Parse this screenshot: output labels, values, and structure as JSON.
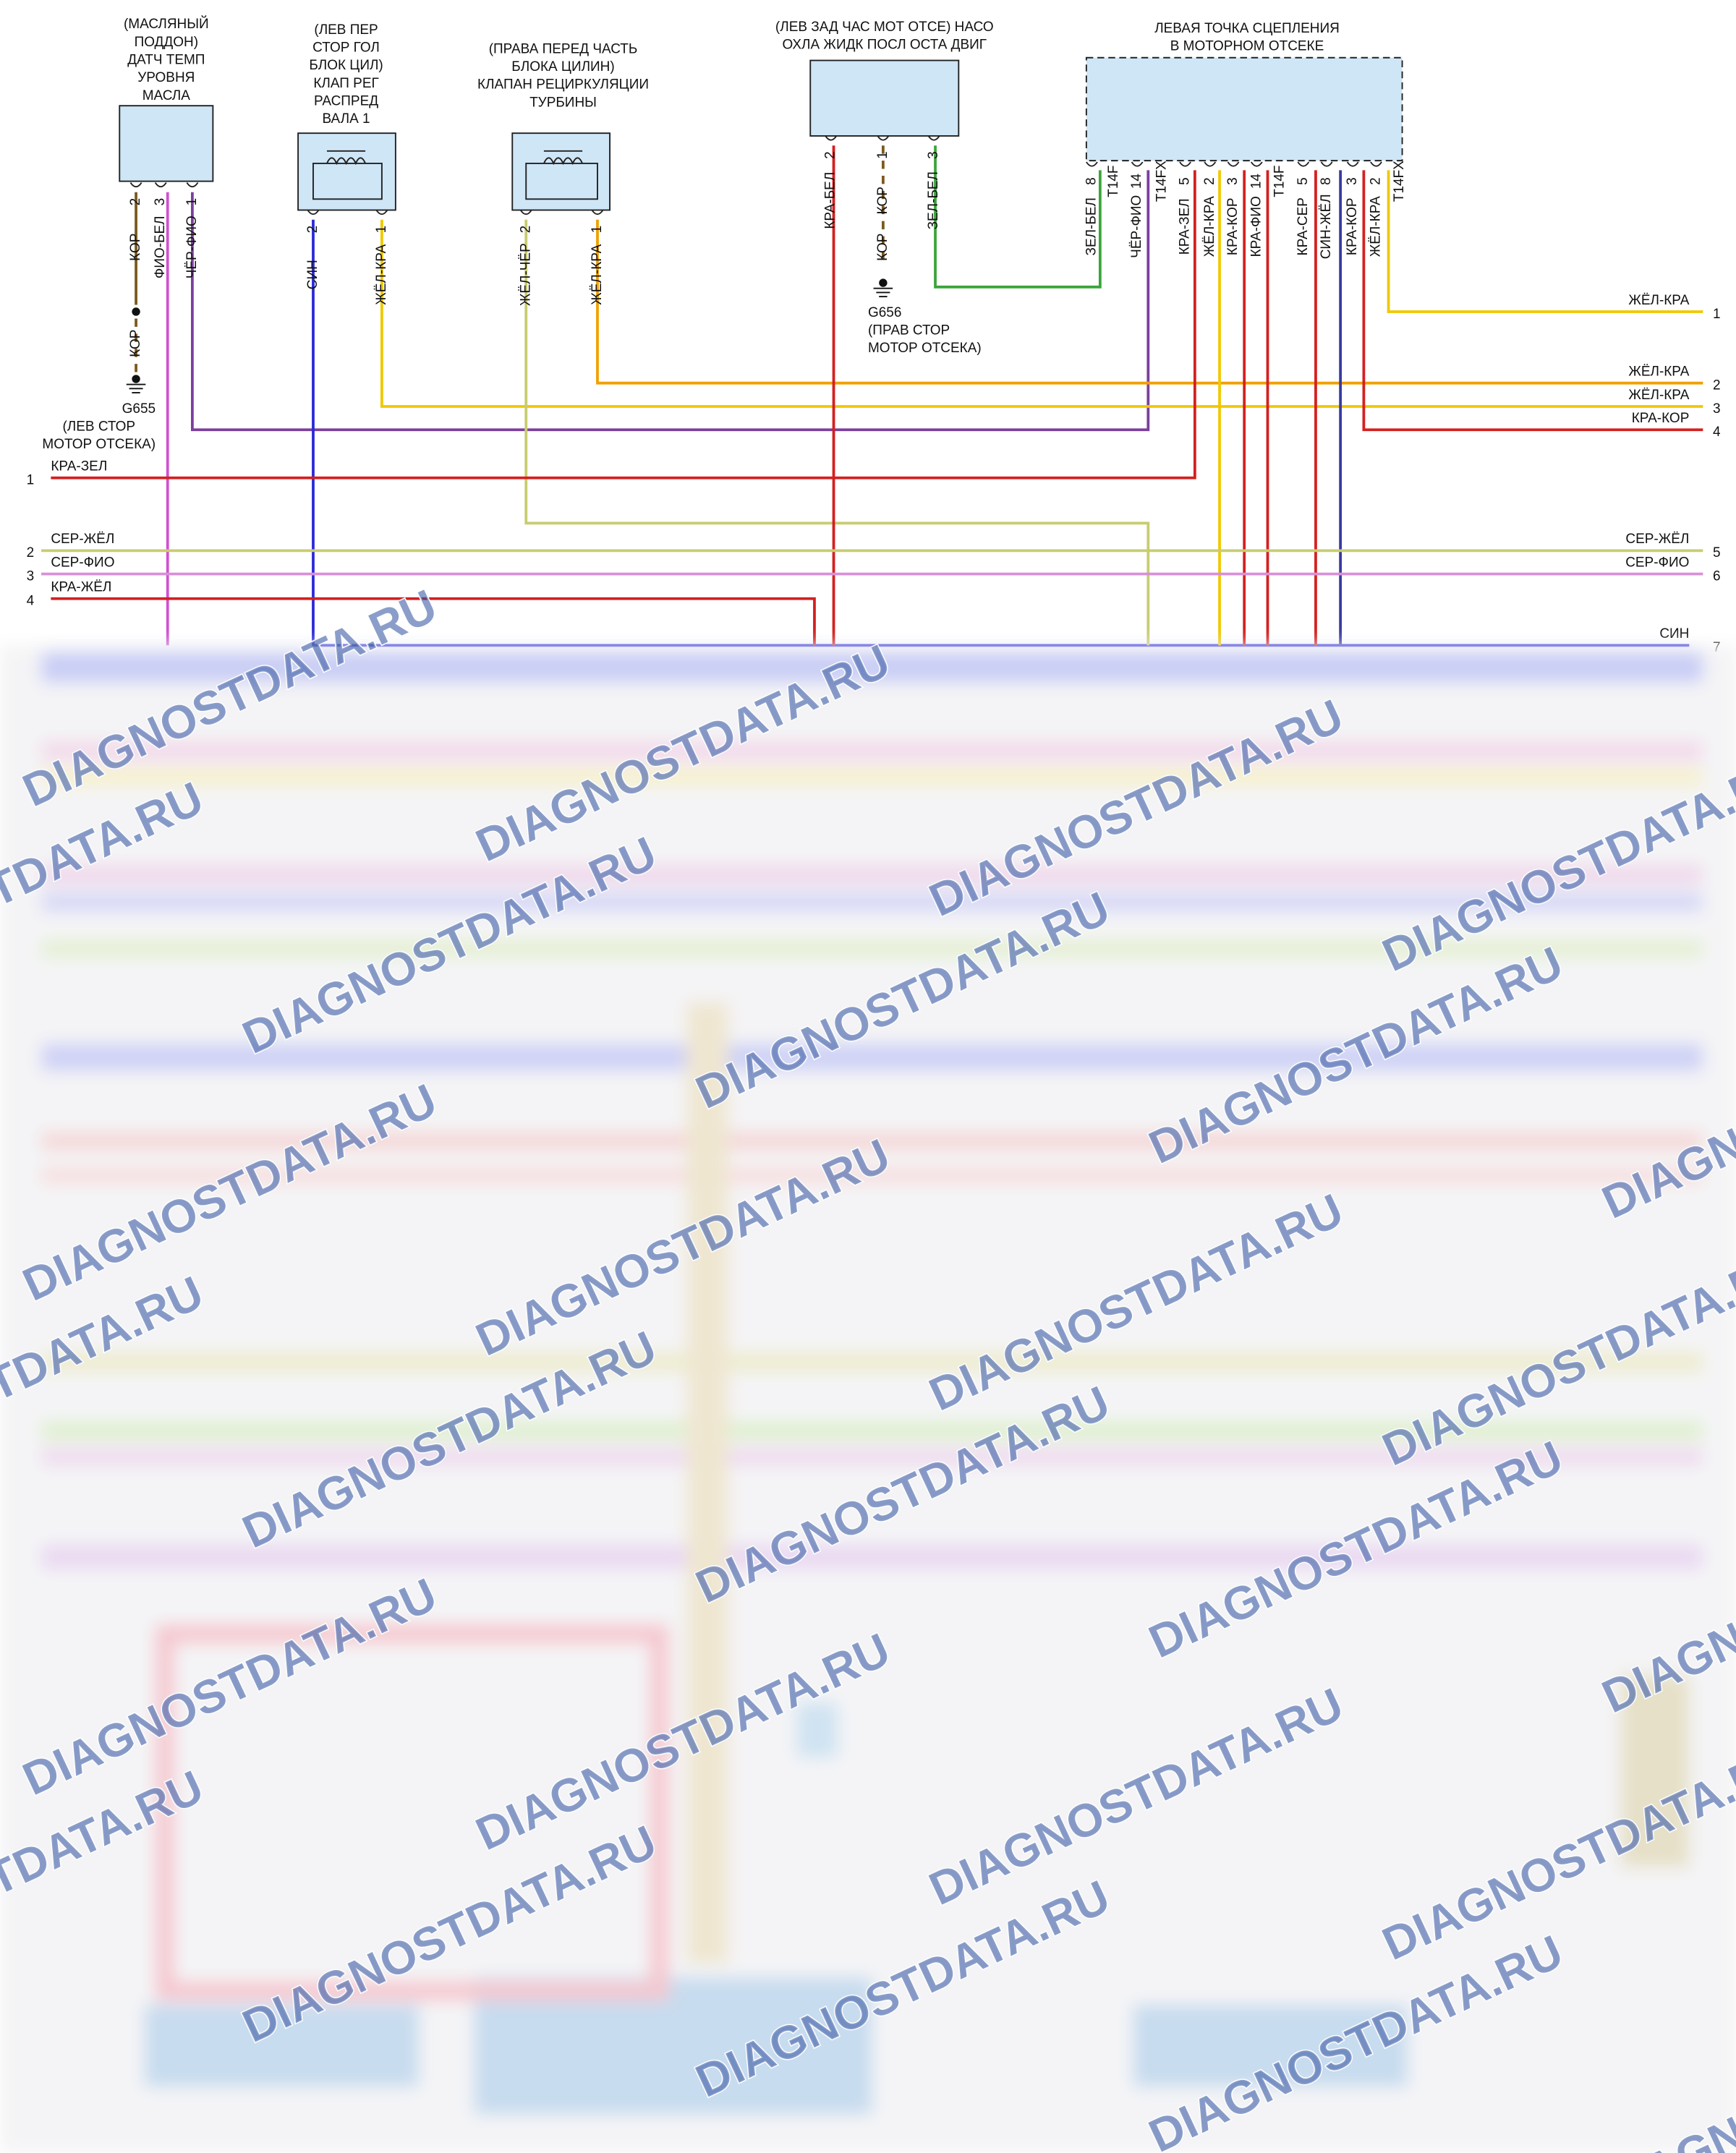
{
  "components": [
    {
      "label": [
        "(МАСЛЯНЫЙ",
        "ПОДДОН)",
        "ДАТЧ ТЕМП",
        "УРОВНЯ",
        "МАСЛА"
      ],
      "pins": [
        {
          "num": "2",
          "wire": "КОР"
        },
        {
          "num": "3",
          "wire": "ФИО-БЕЛ"
        },
        {
          "num": "1",
          "wire": "ЧЁР-ФИО"
        }
      ]
    },
    {
      "label": [
        "(ЛЕВ ПЕР",
        "СТОР ГОЛ",
        "БЛОК ЦИЛ)",
        "КЛАП РЕГ",
        "РАСПРЕД",
        "ВАЛА 1"
      ],
      "pins": [
        {
          "num": "2",
          "wire": "СИН"
        },
        {
          "num": "1",
          "wire": "ЖЁЛ-КРА"
        }
      ]
    },
    {
      "label": [
        "(ПРАВА ПЕРЕД ЧАСТЬ",
        "БЛОКА ЦИЛИН)",
        "КЛАПАН РЕЦИРКУЛЯЦИИ",
        "ТУРБИНЫ"
      ],
      "pins": [
        {
          "num": "2",
          "wire": "ЖЁЛ-ЧЁР"
        },
        {
          "num": "1",
          "wire": "ЖЁЛ-КРА"
        }
      ]
    },
    {
      "label": [
        "(ЛЕВ ЗАД ЧАС МОТ ОТСЕ) НАСО",
        "ОХЛА ЖИДК ПОСЛ ОСТА ДВИГ"
      ],
      "pins": [
        {
          "num": "2",
          "wire": "КРА-БЕЛ"
        },
        {
          "num": "1",
          "wire": "КОР"
        },
        {
          "num": "3",
          "wire": "ЗЕЛ-БЕЛ"
        }
      ]
    },
    {
      "label": [
        "ЛЕВАЯ ТОЧКА СЦЕПЛЕНИЯ",
        "В МОТОРНОМ ОТСЕКЕ"
      ],
      "pins": [
        {
          "num": "8",
          "wire": "ЗЕЛ-БЕЛ"
        },
        {
          "num": "14",
          "wire": "ЧЁР-ФИО"
        },
        {
          "num": "5",
          "wire": "КРА-ЗЕЛ"
        },
        {
          "num": "2",
          "wire": "ЖЁЛ-КРА"
        },
        {
          "num": "3",
          "wire": "КРА-КОР"
        },
        {
          "num": "14",
          "wire": "КРА-ФИО"
        },
        {
          "num": "5",
          "wire": "КРА-СЕР"
        },
        {
          "num": "8",
          "wire": "СИН-ЖЁЛ"
        },
        {
          "num": "3",
          "wire": "КРА-КОР"
        },
        {
          "num": "2",
          "wire": "ЖЁЛ-КРА"
        }
      ],
      "connectors": [
        "T14F",
        "T14FX",
        "T14F",
        "T14FX"
      ]
    }
  ],
  "grounds": [
    {
      "wire": "КОР",
      "id": "G655",
      "label": [
        "(ЛЕВ СТОР",
        "МОТОР ОТСЕКА)"
      ]
    },
    {
      "wire": "КОР",
      "id": "G656",
      "label": [
        "(ПРАВ СТОР",
        "МОТОР ОТСЕКА)"
      ]
    }
  ],
  "left_rows": [
    {
      "num": "1",
      "wire": "КРА-ЗЕЛ"
    },
    {
      "num": "2",
      "wire": "СЕР-ЖЁЛ"
    },
    {
      "num": "3",
      "wire": "СЕР-ФИО"
    },
    {
      "num": "4",
      "wire": "КРА-ЖЁЛ"
    }
  ],
  "right_rows": [
    {
      "num": "1",
      "wire": "ЖЁЛ-КРА"
    },
    {
      "num": "2",
      "wire": "ЖЁЛ-КРА"
    },
    {
      "num": "3",
      "wire": "ЖЁЛ-КРА"
    },
    {
      "num": "4",
      "wire": "КРА-КОР"
    },
    {
      "num": "5",
      "wire": "СЕР-ЖЁЛ"
    },
    {
      "num": "6",
      "wire": "СЕР-ФИО"
    },
    {
      "num": "7",
      "wire": "СИН"
    }
  ],
  "watermark": "DIAGNOSTDATA.RU"
}
